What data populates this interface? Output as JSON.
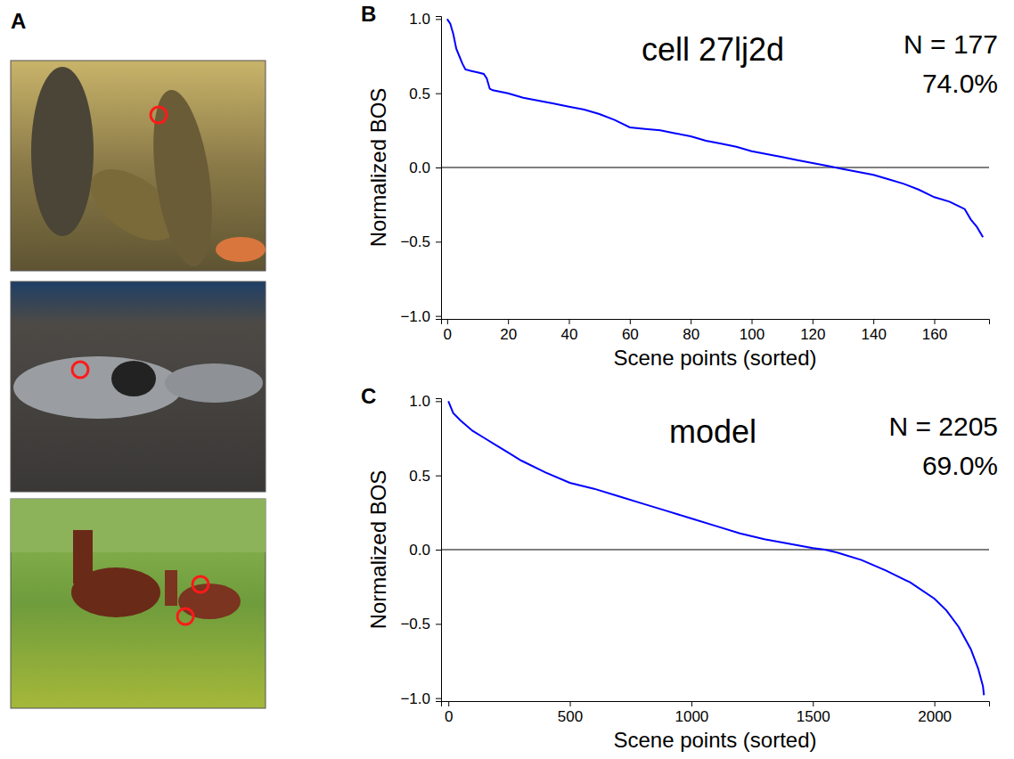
{
  "panel_a": {
    "panel": "A"
  },
  "chart_data": [
    {
      "type": "line",
      "panel": "B",
      "title": "cell 27lj2d",
      "annotations": [
        "N = 177",
        "74.0%"
      ],
      "x_label": "Scene points (sorted)",
      "y_label": "Normalized BOS",
      "xlim": [
        -2,
        178
      ],
      "ylim": [
        -1.02,
        1.02
      ],
      "xticks": [
        0,
        20,
        40,
        60,
        80,
        100,
        120,
        140,
        160
      ],
      "yticks": [
        {
          "value": -1.0,
          "label": "−1.0"
        },
        {
          "value": -0.5,
          "label": "−0.5"
        },
        {
          "value": 0.0,
          "label": "0.0"
        },
        {
          "value": 0.5,
          "label": "0.5"
        },
        {
          "value": 1.0,
          "label": "1.0"
        }
      ],
      "reference_line": 0,
      "color": "#0000ff",
      "x": [
        0,
        1,
        2,
        3,
        4,
        5,
        6,
        8,
        10,
        12,
        13,
        14,
        15,
        20,
        25,
        30,
        35,
        40,
        45,
        50,
        55,
        60,
        65,
        70,
        75,
        80,
        85,
        90,
        95,
        100,
        105,
        110,
        115,
        120,
        125,
        130,
        135,
        140,
        145,
        150,
        155,
        160,
        165,
        168,
        170,
        172,
        174,
        176
      ],
      "values": [
        1.0,
        0.97,
        0.9,
        0.8,
        0.75,
        0.7,
        0.66,
        0.65,
        0.64,
        0.63,
        0.6,
        0.53,
        0.52,
        0.5,
        0.47,
        0.45,
        0.43,
        0.41,
        0.39,
        0.36,
        0.32,
        0.27,
        0.26,
        0.25,
        0.23,
        0.21,
        0.18,
        0.16,
        0.14,
        0.11,
        0.09,
        0.07,
        0.05,
        0.03,
        0.01,
        -0.01,
        -0.03,
        -0.05,
        -0.08,
        -0.11,
        -0.15,
        -0.2,
        -0.23,
        -0.26,
        -0.28,
        -0.35,
        -0.4,
        -0.47
      ]
    },
    {
      "type": "line",
      "panel": "C",
      "title": "model",
      "annotations": [
        "N = 2205",
        "69.0%"
      ],
      "x_label": "Scene points (sorted)",
      "y_label": "Normalized BOS",
      "xlim": [
        -30,
        2225
      ],
      "ylim": [
        -1.02,
        1.02
      ],
      "xticks": [
        0,
        500,
        1000,
        1500,
        2000
      ],
      "yticks": [
        {
          "value": -1.0,
          "label": "−1.0"
        },
        {
          "value": -0.5,
          "label": "−0.5"
        },
        {
          "value": 0.0,
          "label": "0.0"
        },
        {
          "value": 0.5,
          "label": "0.5"
        },
        {
          "value": 1.0,
          "label": "1.0"
        }
      ],
      "reference_line": 0,
      "color": "#0000ff",
      "x": [
        0,
        20,
        50,
        100,
        150,
        200,
        250,
        300,
        400,
        500,
        600,
        700,
        800,
        900,
        1000,
        1100,
        1200,
        1300,
        1400,
        1500,
        1550,
        1600,
        1700,
        1800,
        1900,
        2000,
        2050,
        2100,
        2150,
        2180,
        2200,
        2204
      ],
      "values": [
        1.0,
        0.92,
        0.87,
        0.8,
        0.75,
        0.7,
        0.65,
        0.6,
        0.52,
        0.45,
        0.41,
        0.36,
        0.31,
        0.26,
        0.21,
        0.16,
        0.11,
        0.07,
        0.04,
        0.01,
        0.0,
        -0.02,
        -0.07,
        -0.14,
        -0.22,
        -0.33,
        -0.41,
        -0.52,
        -0.67,
        -0.8,
        -0.92,
        -0.98
      ]
    }
  ]
}
